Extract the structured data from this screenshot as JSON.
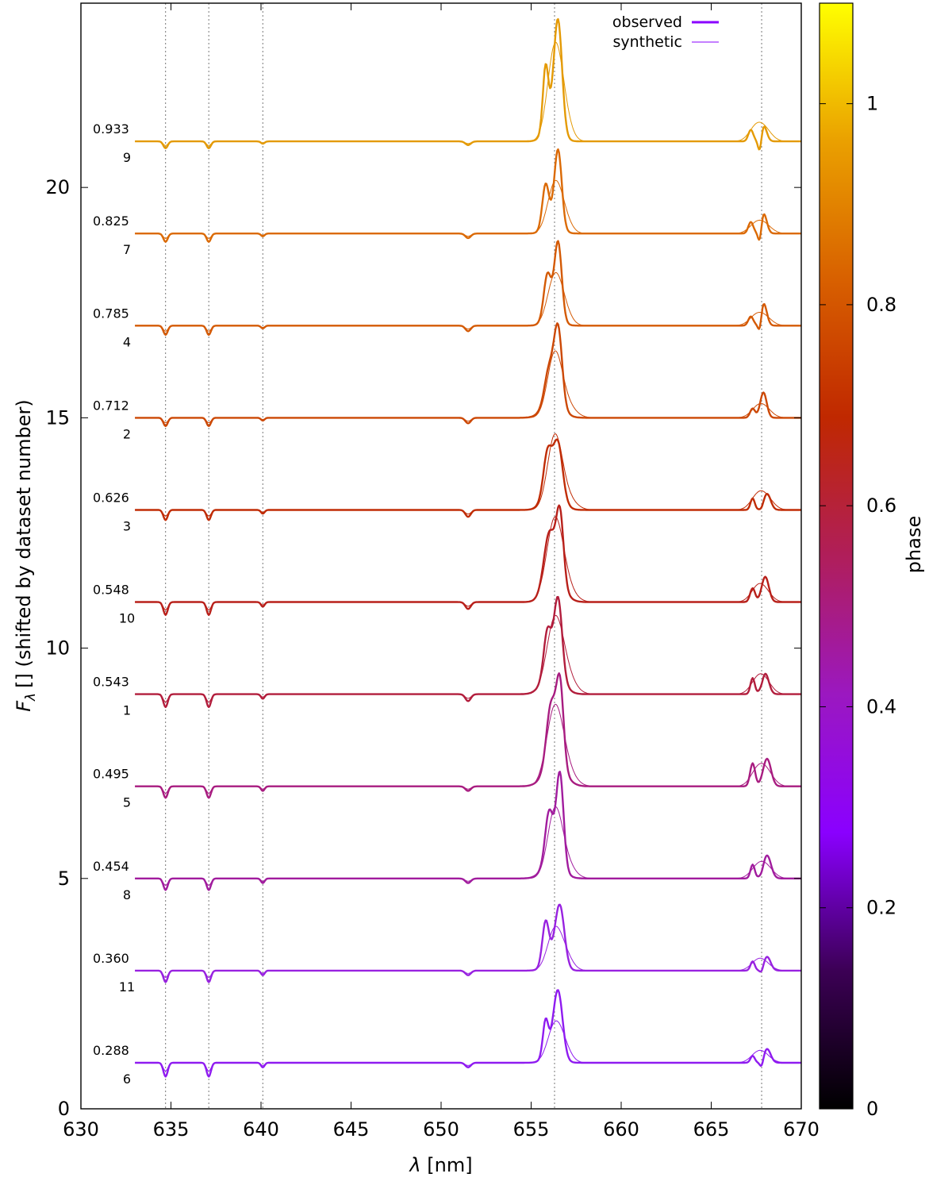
{
  "chart_data": {
    "type": "line",
    "xlabel_symbol": "λ",
    "xlabel_unit": "[nm]",
    "ylabel_symbol": "F",
    "ylabel_sub": "λ",
    "ylabel_rest": "[] (shifted by dataset number)",
    "xlim": [
      630,
      670
    ],
    "ylim": [
      0,
      24
    ],
    "xticks": [
      630,
      635,
      640,
      645,
      650,
      655,
      660,
      665,
      670
    ],
    "yticks": [
      0,
      5,
      10,
      15,
      20
    ],
    "reference_lines": [
      634.7,
      637.1,
      640.1,
      656.3,
      667.8
    ],
    "legend": {
      "position": "top-right",
      "entries": [
        {
          "label": "observed",
          "style": "thick"
        },
        {
          "label": "synthetic",
          "style": "thin"
        }
      ]
    },
    "colorbar": {
      "label": "phase",
      "range": [
        0,
        1.1
      ],
      "ticks": [
        "0",
        "0.2",
        "0.4",
        "0.6",
        "0.8",
        "1"
      ],
      "colors": [
        "#000000",
        "#3c0055",
        "#8a00ff",
        "#9b18c0",
        "#b01e5a",
        "#c02800",
        "#d86000",
        "#eaa000",
        "#ffff00"
      ]
    },
    "x_range": [
      633,
      670
    ],
    "series": [
      {
        "dataset": "6",
        "phase": "0.288",
        "offset": 1,
        "color": "#8f1bf0",
        "blend_lines": [
          [
            634.7,
            -0.3,
            0.12
          ],
          [
            637.1,
            -0.3,
            0.12
          ],
          [
            640.1,
            -0.1,
            0.1
          ],
          [
            651.5,
            -0.1,
            0.15
          ]
        ],
        "obs_lines": [
          [
            655.8,
            0.75,
            0.15
          ],
          [
            656.5,
            1.35,
            0.25
          ],
          [
            656.2,
            0.3,
            0.4
          ],
          [
            667.3,
            0.15,
            0.12
          ],
          [
            667.8,
            -0.15,
            0.1
          ],
          [
            668.1,
            0.3,
            0.2
          ]
        ],
        "syn_lines": [
          [
            656.3,
            0.75,
            0.4
          ],
          [
            656.8,
            0.3,
            0.4
          ],
          [
            667.6,
            0.2,
            0.4
          ],
          [
            668.0,
            0.1,
            0.4
          ]
        ]
      },
      {
        "dataset": "11",
        "phase": "0.360",
        "offset": 3,
        "color": "#9822e0",
        "blend_lines": [
          [
            634.7,
            -0.25,
            0.12
          ],
          [
            637.1,
            -0.25,
            0.12
          ],
          [
            640.1,
            -0.1,
            0.1
          ],
          [
            651.5,
            -0.1,
            0.15
          ]
        ],
        "obs_lines": [
          [
            655.8,
            0.9,
            0.18
          ],
          [
            656.6,
            1.25,
            0.25
          ],
          [
            656.2,
            0.3,
            0.4
          ],
          [
            667.3,
            0.2,
            0.12
          ],
          [
            667.8,
            -0.1,
            0.1
          ],
          [
            668.1,
            0.3,
            0.2
          ]
        ],
        "syn_lines": [
          [
            656.3,
            0.85,
            0.4
          ],
          [
            656.9,
            0.3,
            0.4
          ],
          [
            667.6,
            0.2,
            0.4
          ],
          [
            668.0,
            0.1,
            0.4
          ]
        ]
      },
      {
        "dataset": "8",
        "phase": "0.454",
        "offset": 5,
        "color": "#a11c9e",
        "blend_lines": [
          [
            634.7,
            -0.25,
            0.12
          ],
          [
            637.1,
            -0.25,
            0.12
          ],
          [
            640.1,
            -0.1,
            0.1
          ],
          [
            651.5,
            -0.1,
            0.15
          ]
        ],
        "obs_lines": [
          [
            656.0,
            1.1,
            0.22
          ],
          [
            656.6,
            2.0,
            0.2
          ],
          [
            656.2,
            0.4,
            0.5
          ],
          [
            667.3,
            0.3,
            0.12
          ],
          [
            667.8,
            -0.05,
            0.1
          ],
          [
            668.1,
            0.5,
            0.22
          ]
        ],
        "syn_lines": [
          [
            656.3,
            1.3,
            0.4
          ],
          [
            656.8,
            0.4,
            0.5
          ],
          [
            667.6,
            0.25,
            0.4
          ],
          [
            668.1,
            0.2,
            0.4
          ]
        ]
      },
      {
        "dataset": "5",
        "phase": "0.495",
        "offset": 7,
        "color": "#a81c80",
        "blend_lines": [
          [
            634.7,
            -0.25,
            0.12
          ],
          [
            637.1,
            -0.25,
            0.12
          ],
          [
            640.1,
            -0.1,
            0.1
          ],
          [
            651.5,
            -0.1,
            0.15
          ]
        ],
        "obs_lines": [
          [
            656.1,
            1.3,
            0.25
          ],
          [
            656.6,
            1.8,
            0.2
          ],
          [
            656.3,
            0.5,
            0.55
          ],
          [
            667.3,
            0.5,
            0.14
          ],
          [
            668.1,
            0.6,
            0.22
          ]
        ],
        "syn_lines": [
          [
            656.3,
            1.6,
            0.45
          ],
          [
            656.9,
            0.35,
            0.5
          ],
          [
            667.6,
            0.35,
            0.4
          ],
          [
            668.1,
            0.25,
            0.4
          ]
        ]
      },
      {
        "dataset": "1",
        "phase": "0.543",
        "offset": 9,
        "color": "#b21d3c",
        "blend_lines": [
          [
            634.7,
            -0.28,
            0.12
          ],
          [
            637.1,
            -0.28,
            0.12
          ],
          [
            640.1,
            -0.1,
            0.1
          ],
          [
            651.5,
            -0.15,
            0.15
          ]
        ],
        "obs_lines": [
          [
            655.9,
            0.9,
            0.2
          ],
          [
            656.5,
            1.6,
            0.22
          ],
          [
            656.2,
            0.6,
            0.5
          ],
          [
            667.3,
            0.35,
            0.12
          ],
          [
            667.8,
            -0.05,
            0.1
          ],
          [
            668.0,
            0.45,
            0.2
          ]
        ],
        "syn_lines": [
          [
            656.3,
            1.5,
            0.45
          ],
          [
            656.9,
            0.4,
            0.5
          ],
          [
            667.6,
            0.3,
            0.4
          ],
          [
            668.0,
            0.2,
            0.4
          ]
        ]
      },
      {
        "dataset": "10",
        "phase": "0.548",
        "offset": 11,
        "color": "#b8201a",
        "blend_lines": [
          [
            634.7,
            -0.28,
            0.12
          ],
          [
            637.1,
            -0.28,
            0.12
          ],
          [
            640.1,
            -0.1,
            0.1
          ],
          [
            651.5,
            -0.15,
            0.15
          ]
        ],
        "obs_lines": [
          [
            656.0,
            1.1,
            0.3
          ],
          [
            656.6,
            1.5,
            0.2
          ],
          [
            656.3,
            0.5,
            0.5
          ],
          [
            667.3,
            0.3,
            0.14
          ],
          [
            668.0,
            0.55,
            0.2
          ]
        ],
        "syn_lines": [
          [
            656.3,
            1.7,
            0.45
          ],
          [
            656.9,
            0.3,
            0.5
          ],
          [
            667.6,
            0.3,
            0.4
          ],
          [
            668.0,
            0.15,
            0.4
          ]
        ]
      },
      {
        "dataset": "3",
        "phase": "0.626",
        "offset": 13,
        "color": "#c02c05",
        "blend_lines": [
          [
            634.7,
            -0.22,
            0.12
          ],
          [
            637.1,
            -0.22,
            0.12
          ],
          [
            640.1,
            -0.08,
            0.1
          ],
          [
            651.5,
            -0.15,
            0.15
          ]
        ],
        "obs_lines": [
          [
            655.9,
            0.8,
            0.22
          ],
          [
            656.5,
            1.0,
            0.25
          ],
          [
            656.2,
            0.6,
            0.45
          ],
          [
            667.3,
            0.25,
            0.12
          ],
          [
            667.8,
            -0.05,
            0.1
          ],
          [
            668.1,
            0.35,
            0.2
          ]
        ],
        "syn_lines": [
          [
            656.3,
            1.5,
            0.4
          ],
          [
            656.9,
            0.3,
            0.5
          ],
          [
            667.6,
            0.3,
            0.4
          ],
          [
            668.1,
            0.2,
            0.4
          ]
        ]
      },
      {
        "dataset": "2",
        "phase": "0.712",
        "offset": 15,
        "color": "#cc4805",
        "blend_lines": [
          [
            634.7,
            -0.18,
            0.12
          ],
          [
            637.1,
            -0.18,
            0.12
          ],
          [
            640.1,
            -0.06,
            0.1
          ],
          [
            651.5,
            -0.12,
            0.15
          ]
        ],
        "obs_lines": [
          [
            656.0,
            0.7,
            0.25
          ],
          [
            656.5,
            1.6,
            0.22
          ],
          [
            656.2,
            0.4,
            0.5
          ],
          [
            667.3,
            0.2,
            0.14
          ],
          [
            667.9,
            0.55,
            0.18
          ]
        ],
        "syn_lines": [
          [
            656.3,
            1.3,
            0.4
          ],
          [
            656.9,
            0.3,
            0.5
          ],
          [
            667.6,
            0.2,
            0.4
          ],
          [
            668.0,
            0.15,
            0.4
          ]
        ]
      },
      {
        "dataset": "4",
        "phase": "0.785",
        "offset": 17,
        "color": "#d45a05",
        "blend_lines": [
          [
            634.7,
            -0.2,
            0.12
          ],
          [
            637.1,
            -0.2,
            0.12
          ],
          [
            640.1,
            -0.06,
            0.1
          ],
          [
            651.5,
            -0.12,
            0.15
          ]
        ],
        "obs_lines": [
          [
            655.9,
            0.9,
            0.2
          ],
          [
            656.5,
            1.6,
            0.2
          ],
          [
            656.2,
            0.3,
            0.4
          ],
          [
            667.2,
            0.2,
            0.14
          ],
          [
            667.7,
            -0.3,
            0.1
          ],
          [
            667.9,
            0.5,
            0.18
          ]
        ],
        "syn_lines": [
          [
            656.3,
            1.0,
            0.4
          ],
          [
            656.8,
            0.3,
            0.4
          ],
          [
            667.5,
            0.2,
            0.4
          ],
          [
            668.0,
            0.15,
            0.4
          ]
        ]
      },
      {
        "dataset": "7",
        "phase": "0.825",
        "offset": 19,
        "color": "#db6a05",
        "blend_lines": [
          [
            634.7,
            -0.18,
            0.12
          ],
          [
            637.1,
            -0.18,
            0.12
          ],
          [
            640.1,
            -0.06,
            0.1
          ],
          [
            651.5,
            -0.1,
            0.15
          ]
        ],
        "obs_lines": [
          [
            655.8,
            0.9,
            0.18
          ],
          [
            656.5,
            1.6,
            0.2
          ],
          [
            656.2,
            0.3,
            0.4
          ],
          [
            667.2,
            0.25,
            0.14
          ],
          [
            667.7,
            -0.35,
            0.1
          ],
          [
            667.9,
            0.45,
            0.18
          ]
        ],
        "syn_lines": [
          [
            656.3,
            1.0,
            0.4
          ],
          [
            656.8,
            0.3,
            0.4
          ],
          [
            667.5,
            0.2,
            0.4
          ],
          [
            668.0,
            0.15,
            0.4
          ]
        ]
      },
      {
        "dataset": "9",
        "phase": "0.933",
        "offset": 21,
        "color": "#e49a05",
        "blend_lines": [
          [
            634.7,
            -0.15,
            0.12
          ],
          [
            637.1,
            -0.15,
            0.12
          ],
          [
            640.1,
            -0.05,
            0.1
          ],
          [
            651.5,
            -0.08,
            0.15
          ]
        ],
        "obs_lines": [
          [
            655.8,
            1.3,
            0.15
          ],
          [
            656.5,
            2.2,
            0.22
          ],
          [
            656.2,
            0.6,
            0.4
          ],
          [
            667.2,
            0.25,
            0.14
          ],
          [
            667.7,
            -0.35,
            0.1
          ],
          [
            667.9,
            0.35,
            0.18
          ]
        ],
        "syn_lines": [
          [
            656.3,
            1.9,
            0.4
          ],
          [
            656.8,
            0.5,
            0.4
          ],
          [
            667.5,
            0.3,
            0.4
          ],
          [
            668.0,
            0.2,
            0.4
          ]
        ]
      }
    ]
  }
}
